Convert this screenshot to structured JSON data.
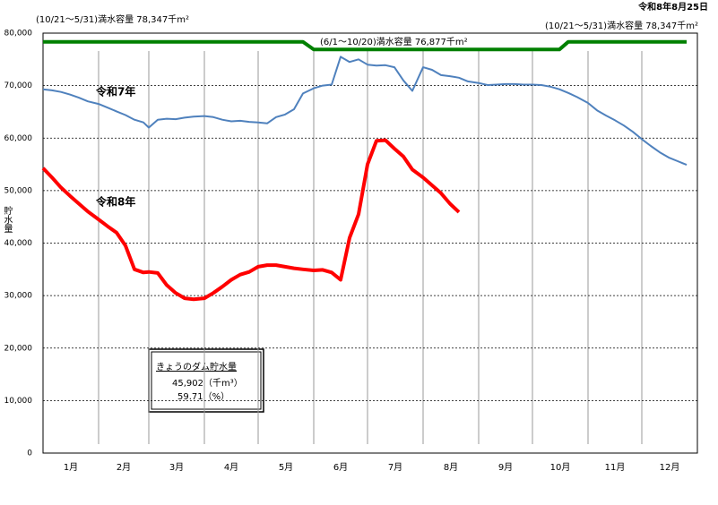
{
  "chart_data": {
    "type": "line",
    "date": "令和8年8月25日",
    "y_label": "貯水量",
    "annotations": [
      "(10/21～5/31)満水容量 78,347千m²",
      "(6/1～10/20)満水容量 76,877千m²",
      "(10/21～5/31)満水容量 78,347千m²"
    ],
    "info_box": {
      "title": "きょうのダム貯水量",
      "volume": "45,902（千m³）",
      "rate": "59.71（%）"
    },
    "categories": [
      "1月",
      "2月",
      "3月",
      "4月",
      "5月",
      "6月",
      "7月",
      "8月",
      "9月",
      "10月",
      "11月",
      "12月"
    ],
    "x": [
      "1/1",
      "1/6",
      "1/11",
      "1/16",
      "1/21",
      "1/26",
      "2/1",
      "2/6",
      "2/11",
      "2/16",
      "2/21",
      "2/26",
      "3/1",
      "3/6",
      "3/11",
      "3/16",
      "3/21",
      "3/26",
      "4/1",
      "4/6",
      "4/11",
      "4/16",
      "4/21",
      "4/26",
      "5/1",
      "5/6",
      "5/11",
      "5/16",
      "5/21",
      "5/26",
      "6/1",
      "6/6",
      "6/11",
      "6/16",
      "6/21",
      "6/26",
      "7/1",
      "7/6",
      "7/11",
      "7/16",
      "7/21",
      "7/26",
      "8/1",
      "8/6",
      "8/11",
      "8/16",
      "8/21",
      "8/26",
      "9/1",
      "9/6",
      "9/11",
      "9/16",
      "9/21",
      "9/26",
      "10/1",
      "10/6",
      "10/11",
      "10/16",
      "10/21",
      "10/26",
      "11/1",
      "11/6",
      "11/11",
      "11/16",
      "11/21",
      "11/26",
      "12/1",
      "12/6",
      "12/11",
      "12/16",
      "12/21",
      "12/26"
    ],
    "series": [
      {
        "name": "令和7年",
        "color": "#4f81bd",
        "width": 2,
        "values": [
          69300,
          69100,
          68800,
          68300,
          67700,
          67000,
          66500,
          65800,
          65100,
          64400,
          63500,
          63000,
          62000,
          63500,
          63700,
          63600,
          63900,
          64100,
          64200,
          64000,
          63500,
          63200,
          63300,
          63100,
          63000,
          62800,
          64000,
          64500,
          65500,
          68500,
          69500,
          70000,
          70200,
          75500,
          74500,
          75000,
          74000,
          73800,
          73900,
          73500,
          71000,
          69000,
          73500,
          73000,
          72000,
          71800,
          71500,
          70800,
          70500,
          70100,
          70200,
          70300,
          70300,
          70200,
          70200,
          70100,
          69800,
          69300,
          68600,
          67800,
          66700,
          65300,
          64300,
          63400,
          62400,
          61200,
          59800,
          58500,
          57300,
          56300,
          55600,
          54900
        ]
      },
      {
        "name": "令和8年",
        "color": "#ff0000",
        "width": 4,
        "values": [
          54300,
          52500,
          50600,
          49000,
          47500,
          46000,
          44500,
          43200,
          42000,
          39500,
          35000,
          34400,
          34500,
          34300,
          32000,
          30500,
          29500,
          29300,
          29500,
          30500,
          31700,
          33000,
          34000,
          34500,
          35500,
          35800,
          35800,
          35500,
          35200,
          35000,
          34800,
          34900,
          34400,
          33000,
          41000,
          45500,
          55000,
          59500,
          59600,
          58000,
          56500,
          54000,
          52500,
          51000,
          49500,
          47500,
          45902,
          null,
          null,
          null,
          null,
          null,
          null,
          null,
          null,
          null,
          null,
          null,
          null,
          null,
          null,
          null,
          null,
          null,
          null,
          null,
          null,
          null,
          null,
          null,
          null,
          null
        ]
      },
      {
        "color": "#008000",
        "width": 4,
        "values": [
          78347,
          78347,
          78347,
          78347,
          78347,
          78347,
          78347,
          78347,
          78347,
          78347,
          78347,
          78347,
          78347,
          78347,
          78347,
          78347,
          78347,
          78347,
          78347,
          78347,
          78347,
          78347,
          78347,
          78347,
          78347,
          78347,
          78347,
          78347,
          78347,
          78347,
          76877,
          76877,
          76877,
          76877,
          76877,
          76877,
          76877,
          76877,
          76877,
          76877,
          76877,
          76877,
          76877,
          76877,
          76877,
          76877,
          76877,
          76877,
          76877,
          76877,
          76877,
          76877,
          76877,
          76877,
          76877,
          76877,
          76877,
          76877,
          78347,
          78347,
          78347,
          78347,
          78347,
          78347,
          78347,
          78347,
          78347,
          78347,
          78347,
          78347,
          78347,
          78347
        ]
      }
    ],
    "ylim": [
      0,
      80000
    ],
    "yticks": [
      0,
      {
        "value": 10000,
        "label": "10,000"
      },
      {
        "value": 20000,
        "label": "20,000"
      },
      {
        "value": 30000,
        "label": "30,000"
      },
      {
        "value": 40000,
        "label": "40,000"
      },
      {
        "value": 50000,
        "label": "50,000"
      },
      {
        "value": 60000,
        "label": "60,000"
      },
      {
        "value": 70000,
        "label": "70,000"
      },
      {
        "value": 80000,
        "label": "80,000"
      }
    ],
    "grid": true
  }
}
